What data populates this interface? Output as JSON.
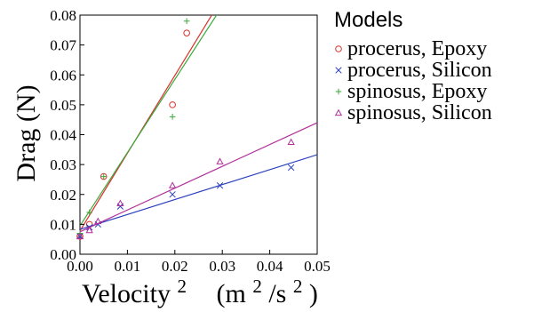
{
  "chart_data": {
    "type": "scatter",
    "xlabel": "Velocity",
    "xlabel_sup": "2",
    "xunit_prefix": "(m",
    "xunit_sup1": "2",
    "xunit_mid": "/s",
    "xunit_sup2": "2",
    "xunit_suffix": ")",
    "ylabel": "Drag (N)",
    "xlim": [
      0,
      0.05
    ],
    "ylim": [
      0,
      0.08
    ],
    "x_ticks": [
      "0.00",
      "0.01",
      "0.02",
      "0.03",
      "0.04",
      "0.05"
    ],
    "y_ticks": [
      "0.00",
      "0.01",
      "0.02",
      "0.03",
      "0.04",
      "0.05",
      "0.06",
      "0.07",
      "0.08"
    ],
    "grid": false,
    "legend_title": "Models",
    "legend_position": "right",
    "series": [
      {
        "name": "procerus, Epoxy",
        "marker": "circle",
        "color": "#d9312b",
        "points": [
          [
            0.0,
            0.006
          ],
          [
            0.002,
            0.01
          ],
          [
            0.005,
            0.026
          ],
          [
            0.0195,
            0.05
          ],
          [
            0.0225,
            0.074
          ]
        ],
        "fit": {
          "intercept": 0.0078,
          "slope": 2.6
        }
      },
      {
        "name": "procerus, Silicon",
        "marker": "x",
        "color": "#2b3fbf",
        "points": [
          [
            0.0,
            0.006
          ],
          [
            0.002,
            0.009
          ],
          [
            0.0038,
            0.01
          ],
          [
            0.0085,
            0.016
          ],
          [
            0.0195,
            0.02
          ],
          [
            0.0295,
            0.023
          ],
          [
            0.0445,
            0.029
          ]
        ],
        "fit": {
          "intercept": 0.0083,
          "slope": 0.5
        }
      },
      {
        "name": "spinosus, Epoxy",
        "marker": "plus",
        "color": "#3aa83a",
        "points": [
          [
            0.0,
            0.007
          ],
          [
            0.002,
            0.014
          ],
          [
            0.005,
            0.026
          ],
          [
            0.0195,
            0.046
          ],
          [
            0.0225,
            0.078
          ]
        ],
        "fit": {
          "intercept": 0.0095,
          "slope": 2.45
        }
      },
      {
        "name": "spinosus, Silicon",
        "marker": "triangle",
        "color": "#b0309a",
        "points": [
          [
            0.0,
            0.006
          ],
          [
            0.002,
            0.008
          ],
          [
            0.0038,
            0.011
          ],
          [
            0.0085,
            0.017
          ],
          [
            0.0195,
            0.023
          ],
          [
            0.0295,
            0.031
          ],
          [
            0.0445,
            0.0375
          ]
        ],
        "fit": {
          "intercept": 0.0075,
          "slope": 0.73
        }
      }
    ]
  }
}
